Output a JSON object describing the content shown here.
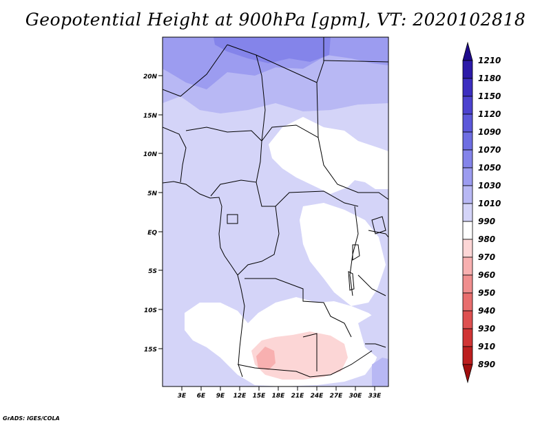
{
  "title": "Geopotential Height at 900hPa [gpm], VT: 2020102818",
  "credit": "GrADS: IGES/COLA",
  "map": {
    "lat_labels": [
      "20N",
      "15N",
      "10N",
      "5N",
      "EQ",
      "5S",
      "10S",
      "15S"
    ],
    "lon_labels": [
      "3E",
      "6E",
      "9E",
      "12E",
      "15E",
      "18E",
      "21E",
      "24E",
      "27E",
      "30E",
      "33E"
    ]
  },
  "colorbar": {
    "levels": [
      "1210",
      "1180",
      "1150",
      "1120",
      "1090",
      "1070",
      "1050",
      "1030",
      "1010",
      "990",
      "980",
      "970",
      "960",
      "950",
      "940",
      "930",
      "910",
      "890"
    ],
    "colors": [
      "#1e0a8c",
      "#2c1aa8",
      "#3c2ec0",
      "#4c42cf",
      "#5c58da",
      "#6e6ee2",
      "#8484ea",
      "#9c9cf0",
      "#b8b8f4",
      "#d4d4f8",
      "#ffffff",
      "#fcd6d6",
      "#f8b0b0",
      "#f08e8e",
      "#e86e6e",
      "#de5050",
      "#d03434",
      "#bc1e1e",
      "#a00e0e"
    ]
  }
}
